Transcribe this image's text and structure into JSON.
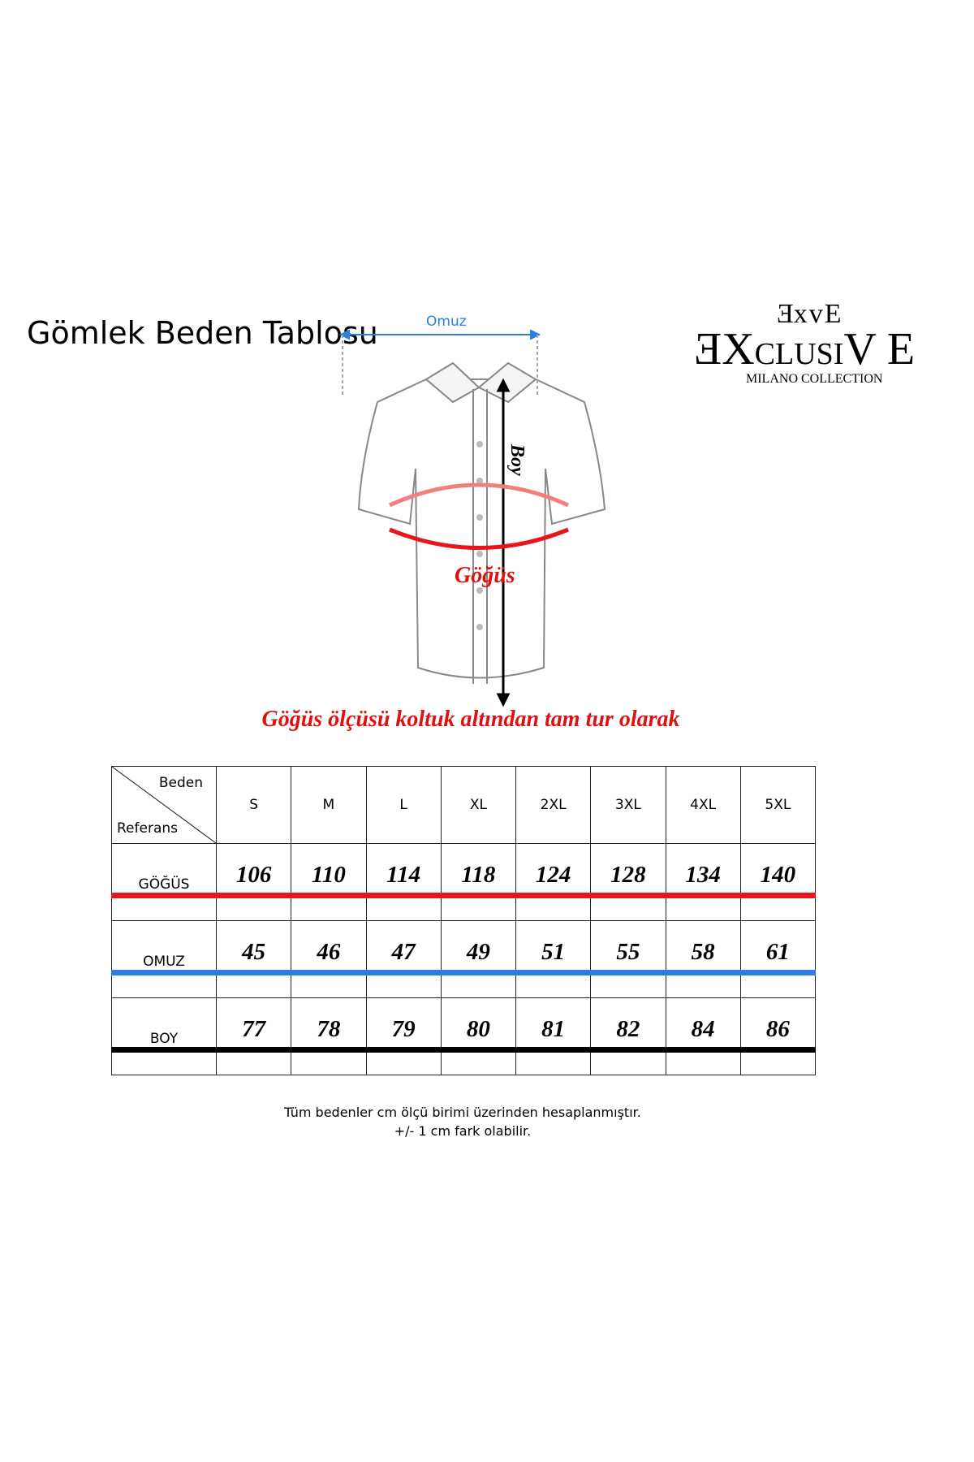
{
  "title": "Gömlek Beden Tablosu",
  "logo": {
    "top": "ExvE",
    "main_left": "E",
    "main_x": "X",
    "main_mid": "CLUSI",
    "main_v": "V",
    "main_right": "E",
    "sub": "MILANO COLLECTION"
  },
  "diagram": {
    "shoulder_label": "Omuz",
    "length_label": "Boy",
    "chest_label": "Göğüs"
  },
  "caption": "Göğüs ölçüsü koltuk altından tam tur olarak",
  "table": {
    "corner_top": "Beden",
    "corner_bottom": "Referans",
    "sizes": [
      "S",
      "M",
      "L",
      "XL",
      "2XL",
      "3XL",
      "4XL",
      "5XL"
    ],
    "rows": [
      {
        "label": "GÖĞÜS",
        "color": "#e8161b",
        "values": [
          "106",
          "110",
          "114",
          "118",
          "124",
          "128",
          "134",
          "140"
        ]
      },
      {
        "label": "OMUZ",
        "color": "#2b7de0",
        "values": [
          "45",
          "46",
          "47",
          "49",
          "51",
          "55",
          "58",
          "61"
        ]
      },
      {
        "label": "BOY",
        "color": "#000000",
        "values": [
          "77",
          "78",
          "79",
          "80",
          "81",
          "82",
          "84",
          "86"
        ]
      }
    ]
  },
  "notes": [
    "Tüm bedenler cm ölçü birimi üzerinden hesaplanmıştır.",
    "+/- 1 cm fark olabilir."
  ]
}
